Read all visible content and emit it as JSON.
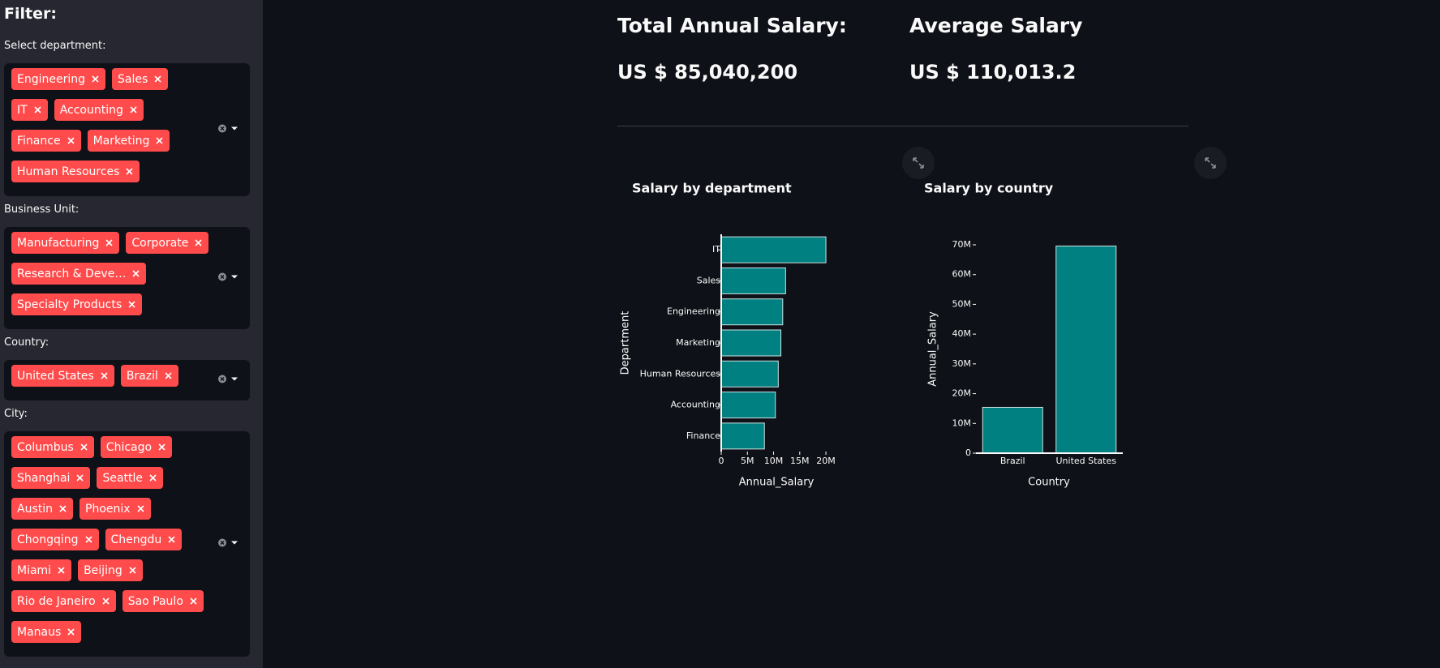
{
  "sidebar": {
    "title": "Filter:",
    "filters": [
      {
        "label": "Select department:",
        "rows": [
          [
            "Engineering",
            "Sales"
          ],
          [
            "IT",
            "Accounting"
          ],
          [
            "Finance",
            "Marketing"
          ],
          [
            "Human Resources"
          ]
        ]
      },
      {
        "label": "Business Unit:",
        "rows": [
          [
            "Manufacturing",
            "Corporate"
          ],
          [
            "Research & Deve…"
          ],
          [
            "Specialty Products"
          ]
        ]
      },
      {
        "label": "Country:",
        "rows": [
          [
            "United States",
            "Brazil"
          ]
        ]
      },
      {
        "label": "City:",
        "rows": [
          [
            "Columbus",
            "Chicago"
          ],
          [
            "Shanghai",
            "Seattle"
          ],
          [
            "Austin",
            "Phoenix"
          ],
          [
            "Chongqing",
            "Chengdu"
          ],
          [
            "Miami",
            "Beijing"
          ],
          [
            "Rio de Janeiro",
            "Sao Paulo"
          ],
          [
            "Manaus"
          ]
        ]
      }
    ]
  },
  "metrics": [
    {
      "label": "Total Annual Salary:",
      "value": "US $ 85,040,200"
    },
    {
      "label": "Average Salary",
      "value": "US $ 110,013.2"
    }
  ],
  "chart_data": [
    {
      "type": "hbar",
      "title": "Salary by department",
      "x_label": "Annual_Salary",
      "y_label": "Department",
      "categories": [
        "IT",
        "Sales",
        "Engineering",
        "Marketing",
        "Human Resources",
        "Accounting",
        "Finance"
      ],
      "values": [
        20000000,
        12300000,
        11750000,
        11400000,
        10900000,
        10350000,
        8250000
      ],
      "color": "#008080",
      "xlim": [
        0,
        21000000
      ],
      "xticks": [
        0,
        {
          "value": 5000000,
          "label": "5M"
        },
        {
          "value": 10000000,
          "label": "10M"
        },
        {
          "value": 15000000,
          "label": "15M"
        },
        {
          "value": 20000000,
          "label": "20M"
        }
      ]
    },
    {
      "type": "bar",
      "title": "Salary by country",
      "x_label": "Country",
      "y_label": "Annual_Salary",
      "categories": [
        "Brazil",
        "United States"
      ],
      "values": [
        15400000,
        69600000
      ],
      "color": "#008080",
      "ylim": [
        0,
        70000000
      ],
      "yticks": [
        0,
        {
          "value": 10000000,
          "label": "10M"
        },
        {
          "value": 20000000,
          "label": "20M"
        },
        {
          "value": 30000000,
          "label": "30M"
        },
        {
          "value": 40000000,
          "label": "40M"
        },
        {
          "value": 50000000,
          "label": "50M"
        },
        {
          "value": 60000000,
          "label": "60M"
        },
        {
          "value": 70000000,
          "label": "70M"
        }
      ]
    }
  ]
}
